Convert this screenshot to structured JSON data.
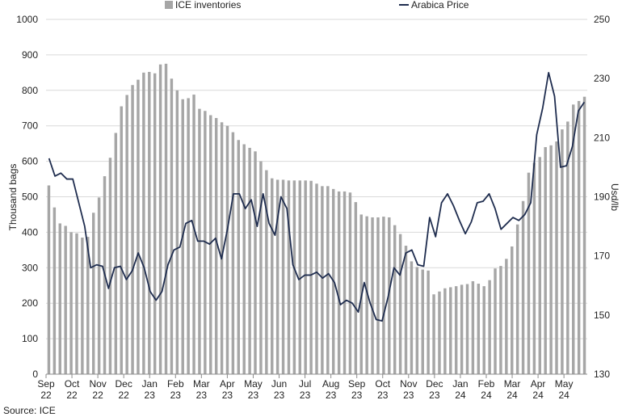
{
  "chart_data": {
    "type": "bar+line",
    "title": "",
    "xlabel": "",
    "ylabel_left": "Thousand bags",
    "ylabel_right": "Usd/lb",
    "ylim_left": [
      0,
      1000
    ],
    "ylim_right": [
      130,
      250
    ],
    "yticks_left": [
      "0",
      "100",
      "200",
      "300",
      "400",
      "500",
      "600",
      "700",
      "800",
      "900",
      "1000"
    ],
    "yticks_right": [
      "130",
      "150",
      "170",
      "190",
      "210",
      "230",
      "250"
    ],
    "x_ticks": [
      {
        "month": "Sep",
        "year": "22"
      },
      {
        "month": "Oct",
        "year": "22"
      },
      {
        "month": "Nov",
        "year": "22"
      },
      {
        "month": "Dec",
        "year": "22"
      },
      {
        "month": "Jan",
        "year": "23"
      },
      {
        "month": "Feb",
        "year": "23"
      },
      {
        "month": "Mar",
        "year": "23"
      },
      {
        "month": "Apr",
        "year": "23"
      },
      {
        "month": "May",
        "year": "23"
      },
      {
        "month": "Jun",
        "year": "23"
      },
      {
        "month": "Jul",
        "year": "23"
      },
      {
        "month": "Aug",
        "year": "23"
      },
      {
        "month": "Sep",
        "year": "23"
      },
      {
        "month": "Oct",
        "year": "23"
      },
      {
        "month": "Nov",
        "year": "23"
      },
      {
        "month": "Dec",
        "year": "23"
      },
      {
        "month": "Jan",
        "year": "24"
      },
      {
        "month": "Feb",
        "year": "24"
      },
      {
        "month": "Mar",
        "year": "24"
      },
      {
        "month": "Apr",
        "year": "24"
      },
      {
        "month": "May",
        "year": "24"
      }
    ],
    "grid": "horizontal",
    "legend_position": "top",
    "series": [
      {
        "name": "ICE inventories",
        "kind": "bar",
        "axis": "left",
        "color": "#a6a6a6",
        "values": [
          532,
          470,
          425,
          418,
          400,
          397,
          385,
          387,
          455,
          498,
          558,
          610,
          680,
          755,
          787,
          815,
          830,
          850,
          852,
          848,
          873,
          875,
          833,
          800,
          775,
          778,
          788,
          748,
          742,
          730,
          722,
          710,
          700,
          682,
          660,
          648,
          638,
          628,
          600,
          575,
          552,
          548,
          548,
          546,
          546,
          546,
          546,
          545,
          537,
          530,
          530,
          522,
          515,
          515,
          512,
          485,
          450,
          445,
          442,
          442,
          444,
          442,
          420,
          395,
          362,
          318,
          302,
          295,
          292,
          225,
          233,
          242,
          245,
          248,
          252,
          254,
          262,
          255,
          248,
          265,
          298,
          305,
          325,
          360,
          422,
          488,
          568,
          596,
          612,
          640,
          645,
          656,
          690,
          712,
          760,
          770,
          782
        ]
      },
      {
        "name": "Arabica Price",
        "kind": "line",
        "axis": "right",
        "color": "#1f2d4f",
        "values": [
          203,
          197,
          198,
          196,
          196,
          188,
          180,
          166,
          167,
          166.5,
          159,
          166,
          166.5,
          162,
          165,
          171,
          166,
          158,
          155,
          158,
          167,
          172,
          173,
          181,
          182,
          175,
          175,
          174,
          176,
          169,
          179,
          191,
          191,
          186,
          189,
          180,
          191,
          181,
          177,
          190,
          186,
          167,
          162,
          163.5,
          163.5,
          164.5,
          162.5,
          164,
          161,
          153.5,
          155,
          154,
          151,
          161,
          154,
          148.5,
          148,
          156,
          166,
          163.5,
          171,
          172,
          167,
          166.5,
          183,
          176.5,
          188,
          191,
          187,
          182,
          177.5,
          181.5,
          188,
          188.5,
          191,
          186,
          179,
          181,
          183,
          182,
          184,
          188,
          211,
          220,
          232,
          224,
          200,
          200.5,
          207,
          219,
          222
        ]
      }
    ],
    "source": "Source: ICE"
  }
}
